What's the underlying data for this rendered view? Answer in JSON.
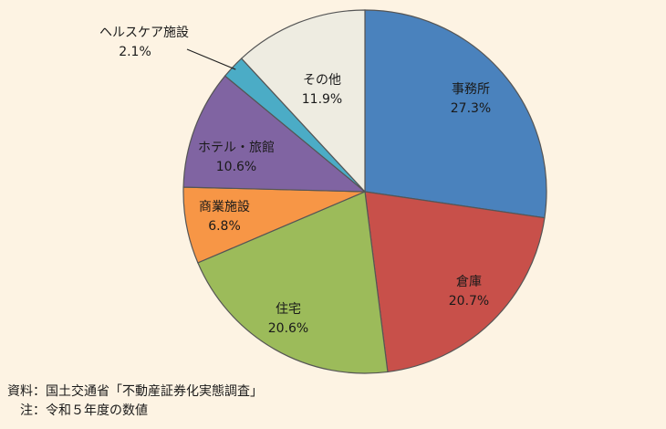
{
  "chart_data": {
    "type": "pie",
    "slices": [
      {
        "label": "事務所",
        "value": 27.3,
        "value_label": "27.3%",
        "color": "#4a82bd"
      },
      {
        "label": "倉庫",
        "value": 20.7,
        "value_label": "20.7%",
        "color": "#c8504a"
      },
      {
        "label": "住宅",
        "value": 20.6,
        "value_label": "20.6%",
        "color": "#9cbb5a"
      },
      {
        "label": "商業施設",
        "value": 6.8,
        "value_label": "6.8%",
        "color": "#f79646"
      },
      {
        "label": "ホテル・旅館",
        "value": 10.6,
        "value_label": "10.6%",
        "color": "#8064a2"
      },
      {
        "label": "ヘルスケア施設",
        "value": 2.1,
        "value_label": "2.1%",
        "color": "#4bacc6"
      },
      {
        "label": "その他",
        "value": 11.9,
        "value_label": "11.9%",
        "color": "#eeece1"
      }
    ],
    "start": "12 o'clock",
    "direction": "clockwise",
    "edge_color": "#555555"
  },
  "notes": {
    "source": "資料：国土交通省「不動産証券化実態調査」",
    "note": "　注：令和５年度の数値"
  }
}
